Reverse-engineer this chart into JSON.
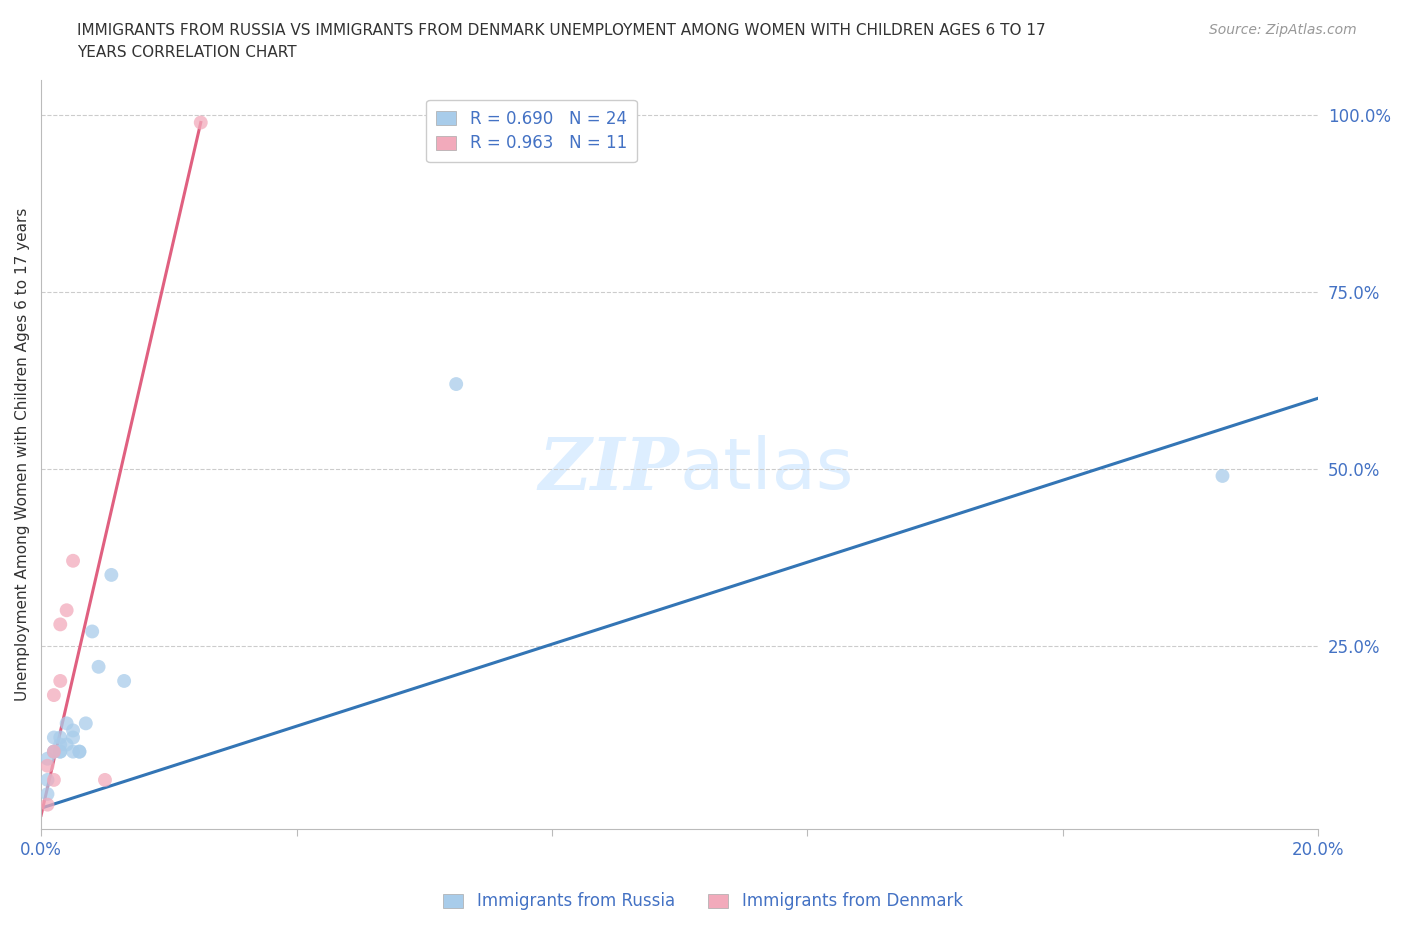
{
  "title_line1": "IMMIGRANTS FROM RUSSIA VS IMMIGRANTS FROM DENMARK UNEMPLOYMENT AMONG WOMEN WITH CHILDREN AGES 6 TO 17",
  "title_line2": "YEARS CORRELATION CHART",
  "source": "Source: ZipAtlas.com",
  "ylabel": "Unemployment Among Women with Children Ages 6 to 17 years",
  "xlim": [
    0.0,
    0.2
  ],
  "ylim": [
    -0.01,
    1.05
  ],
  "x_ticks": [
    0.0,
    0.04,
    0.08,
    0.12,
    0.16,
    0.2
  ],
  "x_tick_labels": [
    "0.0%",
    "",
    "",
    "",
    "",
    "20.0%"
  ],
  "y_ticks_right": [
    0.0,
    0.25,
    0.5,
    0.75,
    1.0
  ],
  "y_tick_labels_right": [
    "",
    "25.0%",
    "50.0%",
    "75.0%",
    "100.0%"
  ],
  "russia_color": "#A8CCEA",
  "denmark_color": "#F2AABB",
  "russia_line_color": "#3375B5",
  "denmark_line_color": "#E06080",
  "background_color": "#FFFFFF",
  "grid_color": "#CCCCCC",
  "axis_color": "#BBBBBB",
  "text_color": "#333333",
  "tick_color": "#4472C4",
  "source_color": "#999999",
  "watermark_color": "#DDEEFF",
  "legend_R_russia": "R = 0.690",
  "legend_N_russia": "N = 24",
  "legend_R_denmark": "R = 0.963",
  "legend_N_denmark": "N = 11",
  "russia_x": [
    0.001,
    0.001,
    0.001,
    0.002,
    0.002,
    0.002,
    0.003,
    0.003,
    0.003,
    0.003,
    0.004,
    0.004,
    0.005,
    0.005,
    0.005,
    0.006,
    0.006,
    0.007,
    0.008,
    0.009,
    0.011,
    0.013,
    0.065,
    0.185
  ],
  "russia_y": [
    0.04,
    0.06,
    0.09,
    0.1,
    0.1,
    0.12,
    0.1,
    0.11,
    0.1,
    0.12,
    0.11,
    0.14,
    0.1,
    0.12,
    0.13,
    0.1,
    0.1,
    0.14,
    0.27,
    0.22,
    0.35,
    0.2,
    0.62,
    0.49
  ],
  "denmark_x": [
    0.001,
    0.001,
    0.002,
    0.002,
    0.002,
    0.003,
    0.003,
    0.004,
    0.005,
    0.01,
    0.025
  ],
  "denmark_y": [
    0.025,
    0.08,
    0.06,
    0.1,
    0.18,
    0.2,
    0.28,
    0.3,
    0.37,
    0.06,
    0.99
  ],
  "russia_trend_x": [
    0.0,
    0.2
  ],
  "russia_trend_y": [
    0.02,
    0.6
  ],
  "denmark_trend_x": [
    0.0,
    0.025
  ],
  "denmark_trend_y": [
    0.01,
    0.99
  ],
  "scatter_size": 100,
  "scatter_alpha": 0.75,
  "title_fontsize": 11,
  "label_fontsize": 11,
  "tick_fontsize": 12,
  "legend_fontsize": 12,
  "source_fontsize": 10
}
